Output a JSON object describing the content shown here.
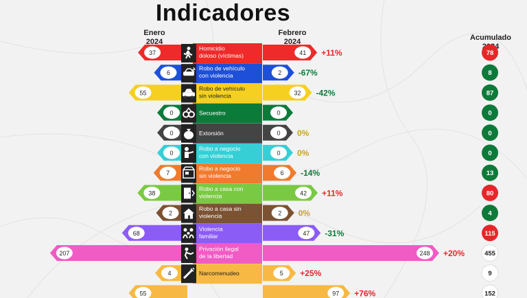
{
  "title": "Indicadores",
  "headers": {
    "left": [
      "Enero",
      "2024"
    ],
    "right": [
      "Febrero",
      "2024"
    ],
    "acc": [
      "Acumulado",
      "2024"
    ]
  },
  "colors": {
    "up": "#e8262a",
    "down": "#0e7a3a",
    "zero": "#c9a227",
    "neutral": "#ffffff"
  },
  "chart_data": {
    "type": "bar",
    "title": "Indicadores",
    "series": [
      {
        "name": "Enero 2024"
      },
      {
        "name": "Febrero 2024"
      },
      {
        "name": "Acumulado 2024"
      }
    ],
    "rows": [
      {
        "label": [
          "Homicidio",
          "doloso (víctimas)"
        ],
        "icon": "running-person-icon",
        "color": "#ee2a2a",
        "enero": 37,
        "febrero": 41,
        "change": "+11%",
        "trend": "up",
        "acumulado": 78,
        "acc_status": "up"
      },
      {
        "label": [
          "Robo de vehículo",
          "con violencia"
        ],
        "icon": "car-crash-icon",
        "color": "#1d4fd8",
        "enero": 6,
        "febrero": 2,
        "change": "-67%",
        "trend": "down",
        "acumulado": 8,
        "acc_status": "down"
      },
      {
        "label": [
          "Robo de vehículo",
          "sin violencia"
        ],
        "icon": "car-icon",
        "color": "#f5d020",
        "enero": 55,
        "febrero": 32,
        "change": "-42%",
        "trend": "down",
        "acumulado": 87,
        "acc_status": "down"
      },
      {
        "label": [
          "Secuestro"
        ],
        "icon": "handcuffs-icon",
        "color": "#0b7b3a",
        "enero": 0,
        "febrero": 0,
        "change": "",
        "trend": "none",
        "acumulado": 0,
        "acc_status": "down"
      },
      {
        "label": [
          "Extorsión"
        ],
        "icon": "money-bag-icon",
        "color": "#444444",
        "enero": 0,
        "febrero": 0,
        "change": "0%",
        "trend": "zero",
        "acumulado": 0,
        "acc_status": "down"
      },
      {
        "label": [
          "Robo a negocio",
          "con violencia"
        ],
        "icon": "robber-icon",
        "color": "#37cfd6",
        "enero": 0,
        "febrero": 0,
        "change": "0%",
        "trend": "zero",
        "acumulado": 0,
        "acc_status": "down"
      },
      {
        "label": [
          "Robo a negocio",
          "sin violencia"
        ],
        "icon": "shop-icon",
        "color": "#f07a2e",
        "enero": 7,
        "febrero": 6,
        "change": "-14%",
        "trend": "down",
        "acumulado": 13,
        "acc_status": "down"
      },
      {
        "label": [
          "Robo a casa con",
          "violencia"
        ],
        "icon": "door-icon",
        "color": "#7ac943",
        "enero": 38,
        "febrero": 42,
        "change": "+11%",
        "trend": "up",
        "acumulado": 80,
        "acc_status": "up"
      },
      {
        "label": [
          "Robo a casa sin",
          "violencia"
        ],
        "icon": "house-icon",
        "color": "#7b5233",
        "enero": 2,
        "febrero": 2,
        "change": "0%",
        "trend": "zero",
        "acumulado": 4,
        "acc_status": "down"
      },
      {
        "label": [
          "Violencia",
          "familiar"
        ],
        "icon": "family-icon",
        "color": "#8b5cf6",
        "enero": 68,
        "febrero": 47,
        "change": "-31%",
        "trend": "down",
        "acumulado": 115,
        "acc_status": "up"
      },
      {
        "label": [
          "Privación ilegal",
          "de la libertad"
        ],
        "icon": "kidnap-icon",
        "color": "#f05bc4",
        "enero": 207,
        "febrero": 248,
        "change": "+20%",
        "trend": "up",
        "acumulado": 455,
        "acc_status": "neutral"
      },
      {
        "label": [
          "Narcomenudeo"
        ],
        "icon": "syringe-icon",
        "color": "#f7b944",
        "enero": 4,
        "febrero": 5,
        "change": "+25%",
        "trend": "up",
        "acumulado": 9,
        "acc_status": "neutral"
      },
      {
        "label": [],
        "icon": "",
        "color": "#f7b944",
        "enero": 55,
        "febrero": 97,
        "change": "+76%",
        "trend": "up",
        "acumulado": 152,
        "acc_status": "neutral"
      }
    ]
  }
}
